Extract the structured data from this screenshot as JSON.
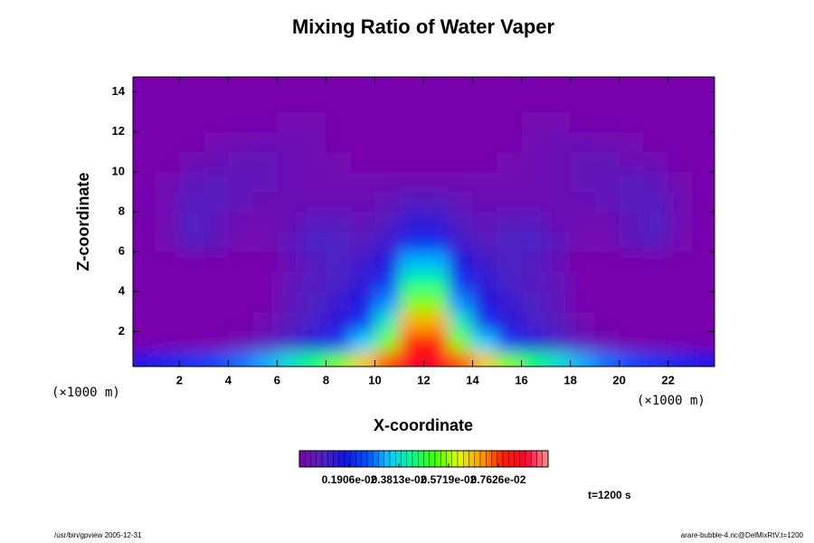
{
  "chart_data": {
    "type": "heatmap",
    "title": "Mixing Ratio of Water Vaper",
    "xlabel": "X-coordinate",
    "ylabel": "Z-coordinate",
    "xunit": "(×1000 m)",
    "yunit": "(×1000 m)",
    "annotation": "t=1200 s",
    "footer_left": "/usr/bin/gpview 2005-12-31",
    "footer_right": "arare-bubble-4.nc@DelMixRtV,t=1200",
    "xlim": [
      0.1,
      23.9
    ],
    "ylim": [
      0.25,
      14.75
    ],
    "xticks": [
      2,
      4,
      6,
      8,
      10,
      12,
      14,
      16,
      18,
      20,
      22
    ],
    "yticks": [
      2,
      4,
      6,
      8,
      10,
      12,
      14
    ],
    "x": [
      0.5,
      1.5,
      2.5,
      3.5,
      4.5,
      5.5,
      6.5,
      7.5,
      8.5,
      9.5,
      10.5,
      11.5,
      12.5,
      13.5,
      14.5,
      15.5,
      16.5,
      17.5,
      18.5,
      19.5,
      20.5,
      21.5,
      22.5,
      23.5
    ],
    "y": [
      0.5,
      1.5,
      2.5,
      3.5,
      4.5,
      5.5,
      6.5,
      7.5,
      8.5,
      9.5,
      10.5,
      11.5,
      12.5,
      13.5,
      14.5
    ],
    "values": [
      [
        0.0018,
        0.002,
        0.0022,
        0.0025,
        0.0028,
        0.0032,
        0.0038,
        0.0045,
        0.0055,
        0.0065,
        0.0075,
        0.0085,
        0.0085,
        0.0075,
        0.0065,
        0.0055,
        0.0045,
        0.0038,
        0.0032,
        0.0028,
        0.0025,
        0.0022,
        0.002,
        0.0018
      ],
      [
        0.0001,
        0.0001,
        0.0001,
        0.0001,
        0.0003,
        0.0006,
        0.001,
        0.0015,
        0.0022,
        0.0035,
        0.0055,
        0.0078,
        0.0078,
        0.0055,
        0.0035,
        0.0022,
        0.0015,
        0.001,
        0.0006,
        0.0003,
        0.0001,
        0.0001,
        0.0001,
        0.0001
      ],
      [
        0.0001,
        0.0001,
        0.0001,
        0.0001,
        0.0001,
        0.0002,
        0.0007,
        0.001,
        0.0014,
        0.0022,
        0.004,
        0.0068,
        0.0068,
        0.004,
        0.0022,
        0.0014,
        0.001,
        0.0007,
        0.0002,
        0.0001,
        0.0001,
        0.0001,
        0.0001,
        0.0001
      ],
      [
        0.0001,
        0.0001,
        0.0001,
        0.0001,
        0.0001,
        0.0001,
        0.0006,
        0.0009,
        0.0012,
        0.0016,
        0.003,
        0.0055,
        0.0055,
        0.003,
        0.0016,
        0.0012,
        0.0009,
        0.0006,
        0.0001,
        0.0001,
        0.0001,
        0.0001,
        0.0001,
        0.0001
      ],
      [
        0.0001,
        0.0001,
        0.0001,
        0.0001,
        0.0001,
        0.0001,
        0.0005,
        0.0008,
        0.001,
        0.0013,
        0.0022,
        0.0043,
        0.0043,
        0.0022,
        0.0013,
        0.001,
        0.0008,
        0.0005,
        0.0001,
        0.0001,
        0.0001,
        0.0001,
        0.0001,
        0.0001
      ],
      [
        0.0001,
        0.0001,
        0.0001,
        0.0001,
        0.0001,
        0.0001,
        0.0004,
        0.0008,
        0.0009,
        0.0011,
        0.0016,
        0.0033,
        0.0033,
        0.0016,
        0.0011,
        0.0009,
        0.0008,
        0.0004,
        0.0001,
        0.0001,
        0.0001,
        0.0001,
        0.0001,
        0.0001
      ],
      [
        0.0001,
        0.0002,
        0.0008,
        0.0006,
        0.0002,
        0.0002,
        0.0006,
        0.001,
        0.0009,
        0.0007,
        0.0011,
        0.002,
        0.002,
        0.0011,
        0.0007,
        0.0009,
        0.001,
        0.0006,
        0.0002,
        0.0002,
        0.0006,
        0.0008,
        0.0002,
        0.0001
      ],
      [
        0.0001,
        0.0003,
        0.0009,
        0.0006,
        0.0003,
        0.0003,
        0.0004,
        0.0007,
        0.0007,
        0.0005,
        0.0008,
        0.0013,
        0.0013,
        0.0008,
        0.0005,
        0.0007,
        0.0007,
        0.0004,
        0.0003,
        0.0003,
        0.0006,
        0.0009,
        0.0003,
        0.0001
      ],
      [
        0.0001,
        0.0003,
        0.0008,
        0.0007,
        0.0005,
        0.0004,
        0.0004,
        0.0004,
        0.0004,
        0.0004,
        0.0005,
        0.0008,
        0.0008,
        0.0005,
        0.0004,
        0.0004,
        0.0004,
        0.0004,
        0.0004,
        0.0005,
        0.0007,
        0.0008,
        0.0003,
        0.0001
      ],
      [
        0.0001,
        0.0002,
        0.0006,
        0.0007,
        0.0006,
        0.0005,
        0.0004,
        0.0003,
        0.0003,
        0.0003,
        0.0003,
        0.0003,
        0.0003,
        0.0003,
        0.0003,
        0.0003,
        0.0003,
        0.0004,
        0.0005,
        0.0006,
        0.0007,
        0.0006,
        0.0002,
        0.0001
      ],
      [
        0.0001,
        0.0001,
        0.0003,
        0.0004,
        0.0005,
        0.0005,
        0.0004,
        0.0003,
        0.0002,
        0.0001,
        0.0001,
        0.0001,
        0.0001,
        0.0001,
        0.0001,
        0.0002,
        0.0003,
        0.0004,
        0.0005,
        0.0005,
        0.0004,
        0.0003,
        0.0001,
        0.0001
      ],
      [
        0.0001,
        0.0001,
        0.0001,
        0.0002,
        0.0003,
        0.0004,
        0.0004,
        0.0003,
        0.0001,
        0.0001,
        0.0001,
        0.0001,
        0.0001,
        0.0001,
        0.0001,
        0.0001,
        0.0003,
        0.0004,
        0.0004,
        0.0003,
        0.0002,
        0.0001,
        0.0001,
        0.0001
      ],
      [
        0.0001,
        0.0001,
        0.0001,
        0.0001,
        0.0001,
        0.0001,
        0.0002,
        0.0002,
        0.0001,
        0.0001,
        0.0001,
        0.0001,
        0.0001,
        0.0001,
        0.0001,
        0.0001,
        0.0002,
        0.0002,
        0.0001,
        0.0001,
        0.0001,
        0.0001,
        0.0001,
        0.0001
      ],
      [
        0.0001,
        0.0001,
        0.0001,
        0.0001,
        0.0001,
        0.0001,
        0.0001,
        0.0001,
        0.0001,
        0.0001,
        0.0001,
        0.0001,
        0.0001,
        0.0001,
        0.0001,
        0.0001,
        0.0001,
        0.0001,
        0.0001,
        0.0001,
        0.0001,
        0.0001,
        0.0001,
        0.0001
      ],
      [
        0.0001,
        0.0001,
        0.0001,
        0.0001,
        0.0001,
        0.0001,
        0.0001,
        0.0001,
        0.0001,
        0.0001,
        0.0001,
        0.0001,
        0.0001,
        0.0001,
        0.0001,
        0.0001,
        0.0001,
        0.0001,
        0.0001,
        0.0001,
        0.0001,
        0.0001,
        0.0001,
        0.0001
      ]
    ],
    "clim": [
      0,
      0.009532
    ],
    "cbticks": [
      {
        "value": 0.001906,
        "label": "0.1906e-02"
      },
      {
        "value": 0.003813,
        "label": "0.3813e-02"
      },
      {
        "value": 0.005719,
        "label": "0.5719e-02"
      },
      {
        "value": 0.007626,
        "label": "0.7626e-02"
      }
    ],
    "colormap": [
      "#7d00aa",
      "#5222c2",
      "#1414e6",
      "#0050ff",
      "#00d0ff",
      "#00ff90",
      "#40ff00",
      "#e0ff00",
      "#ffa000",
      "#ff2000",
      "#ff0030",
      "#ff9090"
    ]
  }
}
